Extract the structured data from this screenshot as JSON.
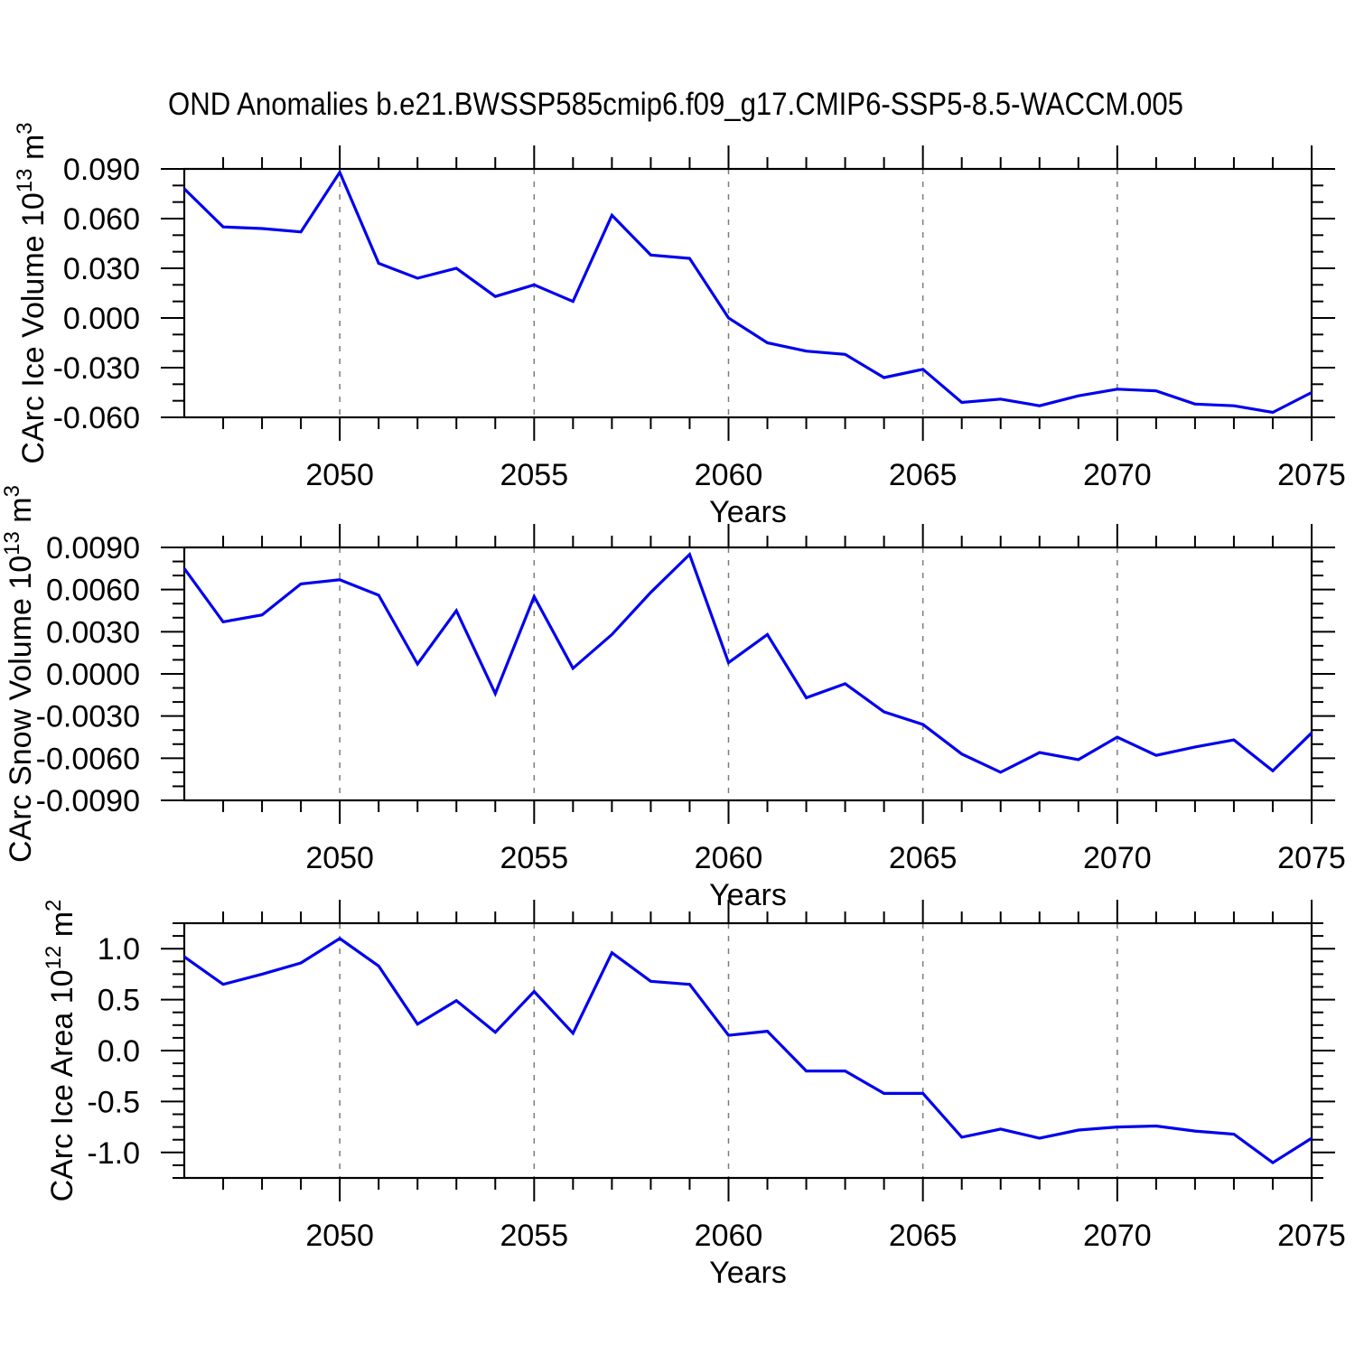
{
  "title": "OND Anomalies b.e21.BWSSP585cmip6.f09_g17.CMIP6-SSP5-8.5-WACCM.005",
  "line_color": "#0000ee",
  "grid_color": "#7c7c7c",
  "chart_data": [
    {
      "type": "line",
      "name": "carc-ice-volume",
      "ylabel": {
        "pre": "CArc Ice Volume 10",
        "sup1": "13",
        "mid": " m",
        "sup2": "3"
      },
      "xlabel": "Years",
      "x": [
        2046,
        2047,
        2048,
        2049,
        2050,
        2051,
        2052,
        2053,
        2054,
        2055,
        2056,
        2057,
        2058,
        2059,
        2060,
        2061,
        2062,
        2063,
        2064,
        2065,
        2066,
        2067,
        2068,
        2069,
        2070,
        2071,
        2072,
        2073,
        2074,
        2075
      ],
      "values": [
        0.078,
        0.055,
        0.054,
        0.052,
        0.088,
        0.033,
        0.024,
        0.03,
        0.013,
        0.02,
        0.01,
        0.062,
        0.038,
        0.036,
        0.0,
        -0.015,
        -0.02,
        -0.022,
        -0.036,
        -0.031,
        -0.051,
        -0.049,
        -0.053,
        -0.047,
        -0.043,
        -0.044,
        -0.052,
        -0.053,
        -0.057,
        -0.045
      ],
      "xlim": [
        2046,
        2075
      ],
      "ylim": [
        -0.06,
        0.09
      ],
      "xticks": [
        2050,
        2055,
        2060,
        2065,
        2070,
        2075
      ],
      "xtick_labels": [
        "2050",
        "2055",
        "2060",
        "2065",
        "2070",
        "2075"
      ],
      "ytick_values": [
        0.09,
        0.06,
        0.03,
        0.0,
        -0.03,
        -0.06
      ],
      "ytick_labels": [
        "0.090",
        "0.060",
        "0.030",
        "0.000",
        "-0.030",
        "-0.060"
      ],
      "y_minor_step": 0.01,
      "x_minor_step": 1,
      "grid_x": [
        2050,
        2055,
        2060,
        2065,
        2070
      ],
      "legend": "none",
      "grid": "vertical-dashed"
    },
    {
      "type": "line",
      "name": "carc-snow-volume",
      "ylabel": {
        "pre": "CArc Snow Volume 10",
        "sup1": "13",
        "mid": " m",
        "sup2": "3"
      },
      "xlabel": "Years",
      "x": [
        2046,
        2047,
        2048,
        2049,
        2050,
        2051,
        2052,
        2053,
        2054,
        2055,
        2056,
        2057,
        2058,
        2059,
        2060,
        2061,
        2062,
        2063,
        2064,
        2065,
        2066,
        2067,
        2068,
        2069,
        2070,
        2071,
        2072,
        2073,
        2074,
        2075
      ],
      "values": [
        0.0075,
        0.0037,
        0.0042,
        0.0064,
        0.0067,
        0.0056,
        0.0007,
        0.0045,
        -0.0014,
        0.0055,
        0.0004,
        0.0028,
        0.0058,
        0.0085,
        0.0008,
        0.0028,
        -0.0017,
        -0.0007,
        -0.0027,
        -0.0036,
        -0.0057,
        -0.007,
        -0.0056,
        -0.0061,
        -0.0045,
        -0.0058,
        -0.0052,
        -0.0047,
        -0.0069,
        -0.0042
      ],
      "xlim": [
        2046,
        2075
      ],
      "ylim": [
        -0.009,
        0.009
      ],
      "xticks": [
        2050,
        2055,
        2060,
        2065,
        2070,
        2075
      ],
      "xtick_labels": [
        "2050",
        "2055",
        "2060",
        "2065",
        "2070",
        "2075"
      ],
      "ytick_values": [
        0.009,
        0.006,
        0.003,
        0.0,
        -0.003,
        -0.006,
        -0.009
      ],
      "ytick_labels": [
        "0.0090",
        "0.0060",
        "0.0030",
        "0.0000",
        "-0.0030",
        "-0.0060",
        "-0.0090"
      ],
      "y_minor_step": 0.001,
      "x_minor_step": 1,
      "grid_x": [
        2050,
        2055,
        2060,
        2065,
        2070
      ],
      "legend": "none",
      "grid": "vertical-dashed"
    },
    {
      "type": "line",
      "name": "carc-ice-area",
      "ylabel": {
        "pre": "CArc Ice Area 10",
        "sup1": "12",
        "mid": " m",
        "sup2": "2"
      },
      "xlabel": "Years",
      "x": [
        2046,
        2047,
        2048,
        2049,
        2050,
        2051,
        2052,
        2053,
        2054,
        2055,
        2056,
        2057,
        2058,
        2059,
        2060,
        2061,
        2062,
        2063,
        2064,
        2065,
        2066,
        2067,
        2068,
        2069,
        2070,
        2071,
        2072,
        2073,
        2074,
        2075
      ],
      "values": [
        0.92,
        0.65,
        0.75,
        0.86,
        1.1,
        0.83,
        0.26,
        0.49,
        0.18,
        0.58,
        0.17,
        0.96,
        0.68,
        0.65,
        0.15,
        0.19,
        -0.2,
        -0.2,
        -0.42,
        -0.42,
        -0.85,
        -0.77,
        -0.86,
        -0.78,
        -0.75,
        -0.74,
        -0.79,
        -0.82,
        -1.1,
        -0.86
      ],
      "xlim": [
        2046,
        2075
      ],
      "ylim": [
        -1.25,
        1.25
      ],
      "xticks": [
        2050,
        2055,
        2060,
        2065,
        2070,
        2075
      ],
      "xtick_labels": [
        "2050",
        "2055",
        "2060",
        "2065",
        "2070",
        "2075"
      ],
      "ytick_values": [
        1.0,
        0.5,
        0.0,
        -0.5,
        -1.0
      ],
      "ytick_labels": [
        "1.0",
        "0.5",
        "0.0",
        "-0.5",
        "-1.0"
      ],
      "y_minor_step": 0.125,
      "x_minor_step": 1,
      "grid_x": [
        2050,
        2055,
        2060,
        2065,
        2070
      ],
      "legend": "none",
      "grid": "vertical-dashed"
    }
  ]
}
